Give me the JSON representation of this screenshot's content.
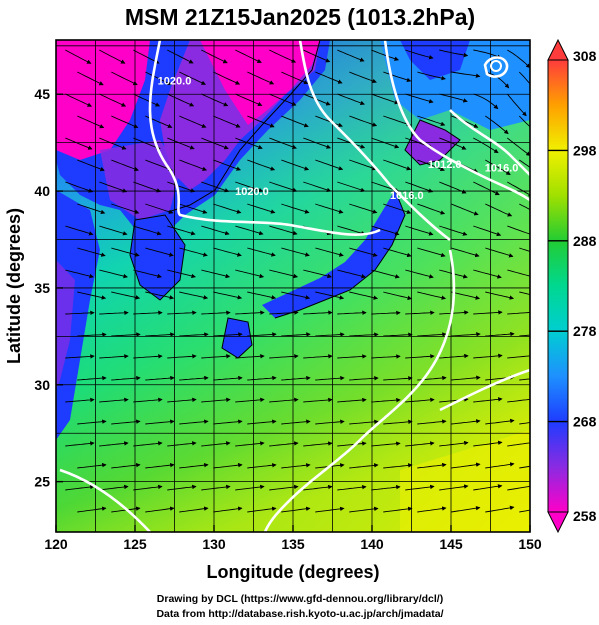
{
  "title": "MSM 21Z15Jan2025 (1013.2hPa)",
  "xlabel": "Longitude (degrees)",
  "ylabel": "Latitude  (degrees)",
  "x_ticks": [
    "120",
    "125",
    "130",
    "135",
    "140",
    "145",
    "150"
  ],
  "y_ticks": [
    "25",
    "30",
    "35",
    "40",
    "45"
  ],
  "colorbar": {
    "ticks": [
      "308",
      "298",
      "288",
      "278",
      "268",
      "258"
    ],
    "stops": [
      {
        "value": 258,
        "color": "#ff00c8"
      },
      {
        "value": 263,
        "color": "#8a2be2"
      },
      {
        "value": 268,
        "color": "#1e3cff"
      },
      {
        "value": 273,
        "color": "#1e90ff"
      },
      {
        "value": 278,
        "color": "#00ced1"
      },
      {
        "value": 283,
        "color": "#00d890"
      },
      {
        "value": 288,
        "color": "#22cc33"
      },
      {
        "value": 293,
        "color": "#a0e000"
      },
      {
        "value": 298,
        "color": "#f0f000"
      },
      {
        "value": 303,
        "color": "#ffa000"
      },
      {
        "value": 308,
        "color": "#ff3c3c"
      }
    ]
  },
  "contour_labels": [
    {
      "text": "1020.0",
      "lon": 132.4,
      "lat": 39.8
    },
    {
      "text": "1016.0",
      "lon": 142.2,
      "lat": 39.6
    },
    {
      "text": "1012.0",
      "lon": 144.6,
      "lat": 41.2
    },
    {
      "text": "1016.0",
      "lon": 148.2,
      "lat": 41.0
    },
    {
      "text": "1020.0",
      "lon": 127.5,
      "lat": 45.5
    }
  ],
  "credits": [
    "Drawing by DCL (https://www.gfd-dennou.org/library/dcl/)",
    "Data from http://database.rish.kyoto-u.ac.jp/arch/jmadata/"
  ]
}
